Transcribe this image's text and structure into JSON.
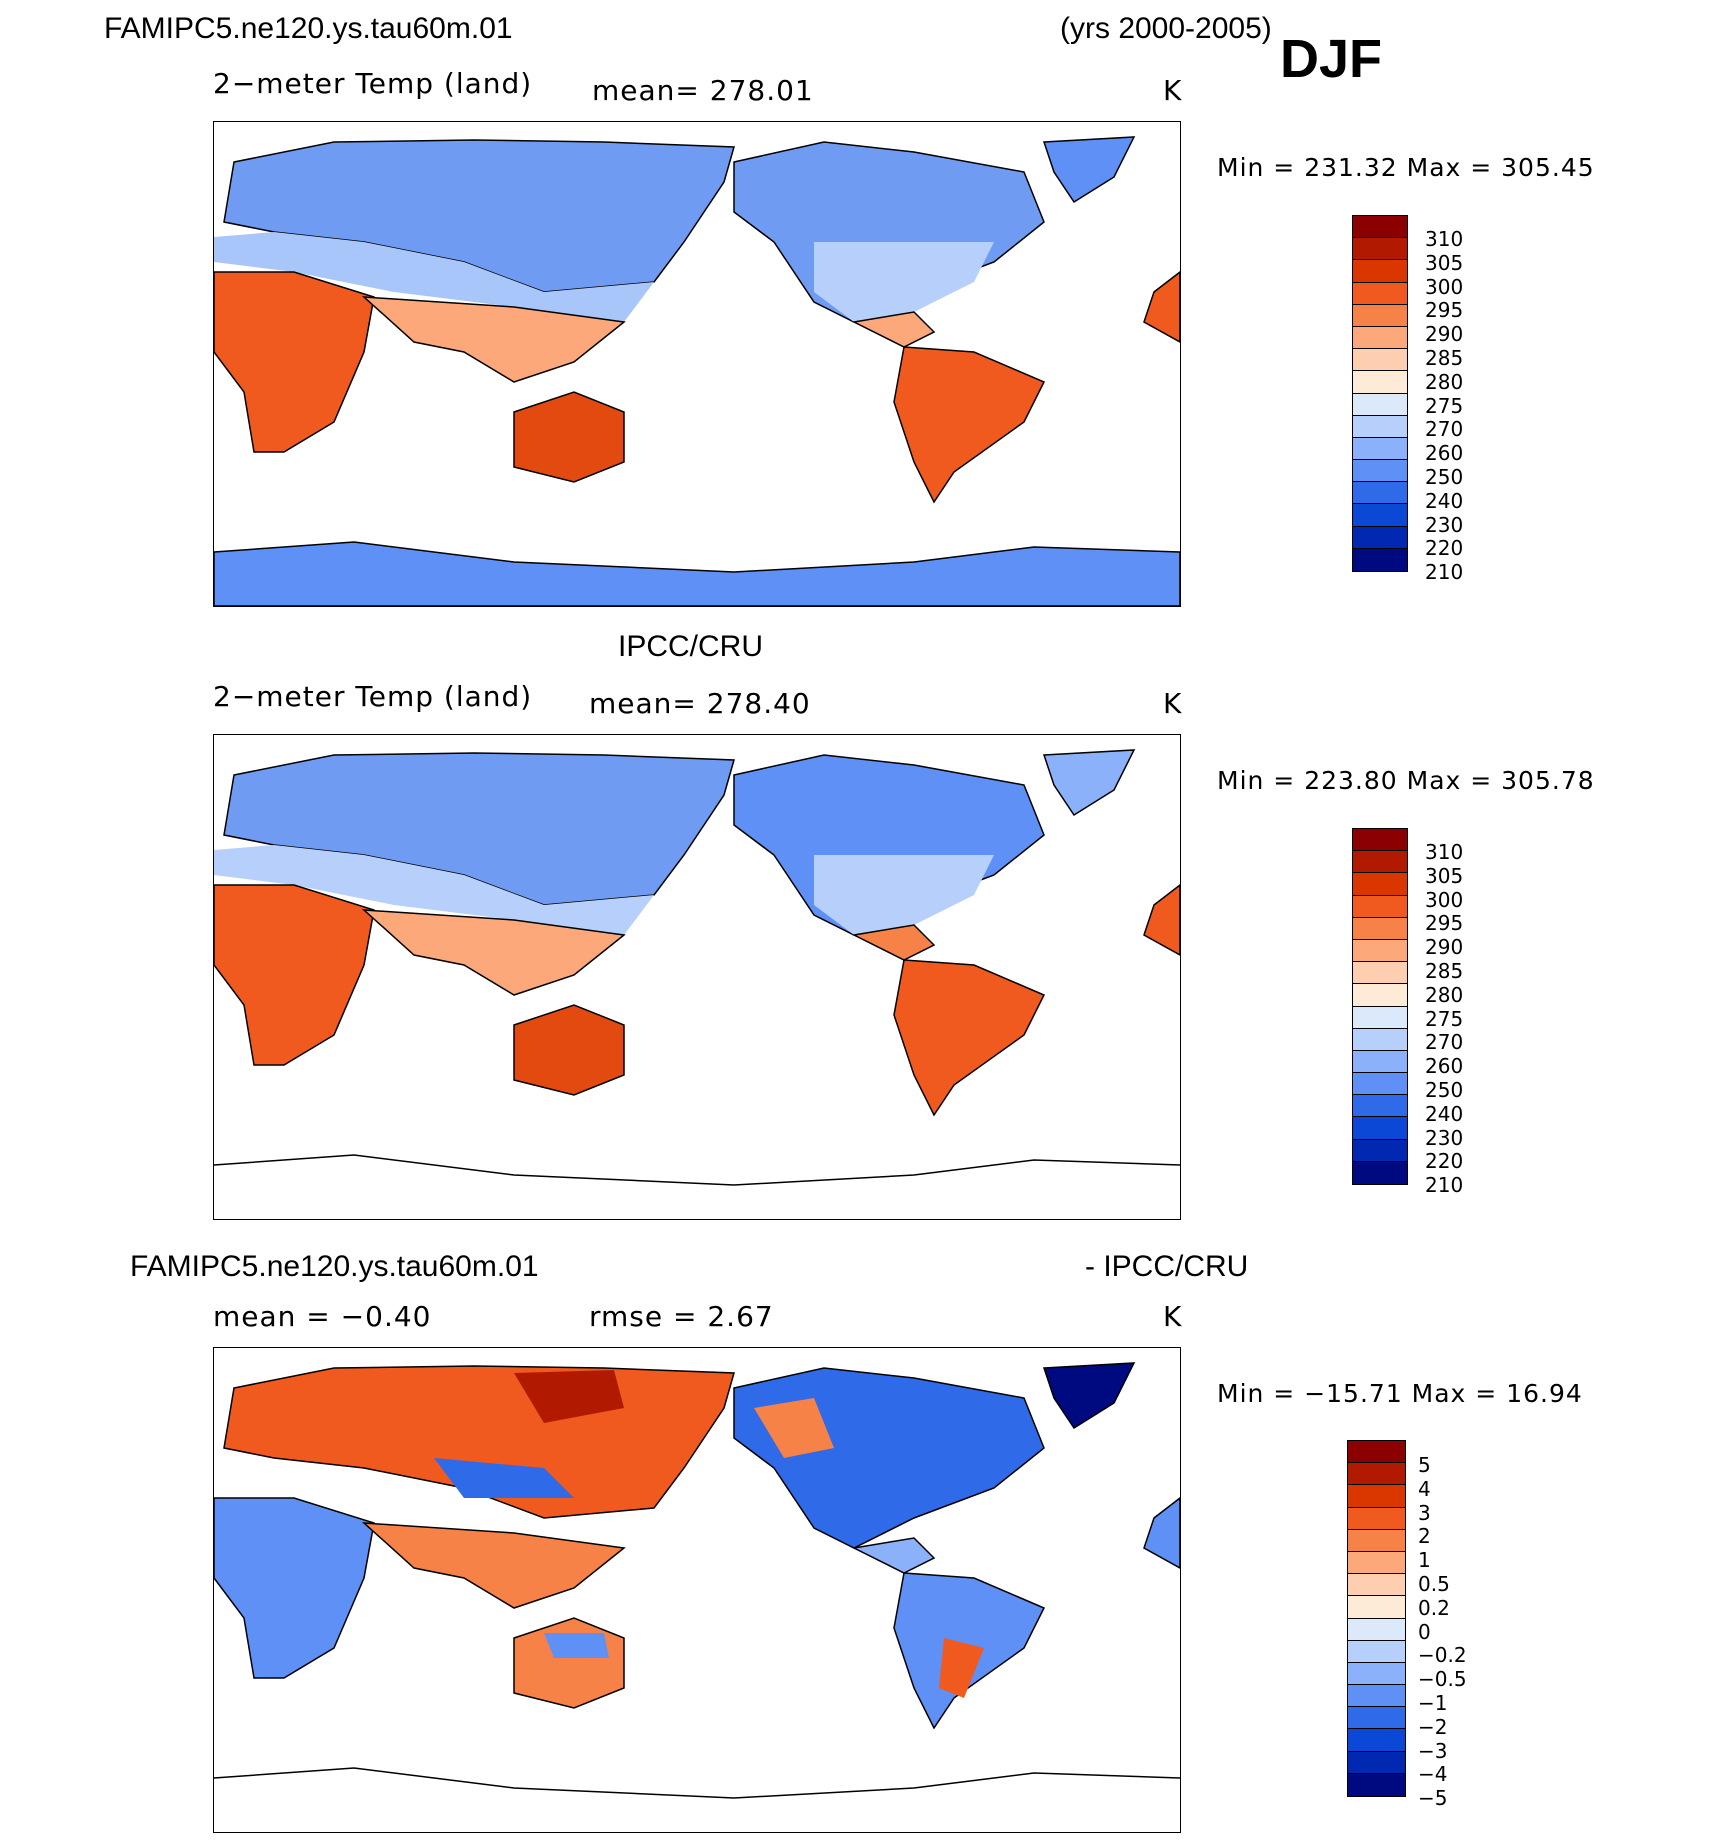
{
  "header": {
    "case_name": "FAMIPC5.ne120.ys.tau60m.01",
    "years": "(yrs 2000-2005)",
    "season": "DJF"
  },
  "panels": [
    {
      "title": "",
      "variable": "2−meter Temp (land)",
      "stat_text": "mean=  278.01",
      "units": "K",
      "minmax": "Min  =  231.32  Max  =  305.45",
      "colorbar_labels": [
        "310",
        "305",
        "300",
        "295",
        "290",
        "285",
        "280",
        "275",
        "270",
        "260",
        "250",
        "240",
        "230",
        "220",
        "210"
      ],
      "colorbar_colors": [
        "#8b0000",
        "#b21a00",
        "#d93600",
        "#f05a1e",
        "#f78247",
        "#fca87a",
        "#fdcfb0",
        "#fdebd7",
        "#dbe9fb",
        "#b7cffb",
        "#8cb1fb",
        "#5e90f6",
        "#2f6ae9",
        "#0c48d6",
        "#0128b0",
        "#000a80"
      ]
    },
    {
      "title": "IPCC/CRU",
      "variable": "2−meter Temp (land)",
      "stat_text": "mean=  278.40",
      "units": "K",
      "minmax": "Min  =  223.80  Max  =  305.78",
      "colorbar_labels": [
        "310",
        "305",
        "300",
        "295",
        "290",
        "285",
        "280",
        "275",
        "270",
        "260",
        "250",
        "240",
        "230",
        "220",
        "210"
      ],
      "colorbar_colors": [
        "#8b0000",
        "#b21a00",
        "#d93600",
        "#f05a1e",
        "#f78247",
        "#fca87a",
        "#fdcfb0",
        "#fdebd7",
        "#dbe9fb",
        "#b7cffb",
        "#8cb1fb",
        "#5e90f6",
        "#2f6ae9",
        "#0c48d6",
        "#0128b0",
        "#000a80"
      ]
    },
    {
      "title_left": "FAMIPC5.ne120.ys.tau60m.01",
      "title_right": "- IPCC/CRU",
      "mean_text": "mean  =   −0.40",
      "rmse_text": "rmse  =     2.67",
      "units": "K",
      "minmax": "Min  =  −15.71  Max  =    16.94",
      "colorbar_labels": [
        "5",
        "4",
        "3",
        "2",
        "1",
        "0.5",
        "0.2",
        "0",
        "−0.2",
        "−0.5",
        "−1",
        "−2",
        "−3",
        "−4",
        "−5"
      ],
      "colorbar_colors": [
        "#8b0000",
        "#b21a00",
        "#d93600",
        "#f05a1e",
        "#f78247",
        "#fca87a",
        "#fdcfb0",
        "#fdebd7",
        "#dbe9fb",
        "#b7cffb",
        "#8cb1fb",
        "#5e90f6",
        "#2f6ae9",
        "#0c48d6",
        "#0128b0",
        "#000a80"
      ]
    }
  ]
}
